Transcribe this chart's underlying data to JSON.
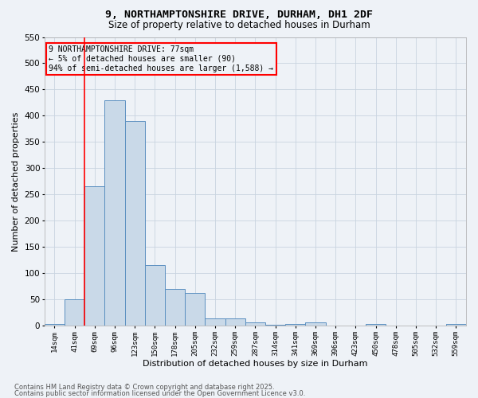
{
  "title_line1": "9, NORTHAMPTONSHIRE DRIVE, DURHAM, DH1 2DF",
  "title_line2": "Size of property relative to detached houses in Durham",
  "xlabel": "Distribution of detached houses by size in Durham",
  "ylabel": "Number of detached properties",
  "categories": [
    "14sqm",
    "41sqm",
    "69sqm",
    "96sqm",
    "123sqm",
    "150sqm",
    "178sqm",
    "205sqm",
    "232sqm",
    "259sqm",
    "287sqm",
    "314sqm",
    "341sqm",
    "369sqm",
    "396sqm",
    "423sqm",
    "450sqm",
    "478sqm",
    "505sqm",
    "532sqm",
    "559sqm"
  ],
  "values": [
    3,
    50,
    265,
    430,
    390,
    115,
    70,
    62,
    14,
    14,
    7,
    1,
    4,
    6,
    0,
    0,
    3,
    0,
    0,
    0,
    3
  ],
  "bar_color": "#c9d9e8",
  "bar_edge_color": "#5a8fc0",
  "grid_color": "#c8d4e0",
  "vline_color": "red",
  "vline_position": 1.5,
  "annotation_title": "9 NORTHAMPTONSHIRE DRIVE: 77sqm",
  "annotation_line1": "← 5% of detached houses are smaller (90)",
  "annotation_line2": "94% of semi-detached houses are larger (1,588) →",
  "annotation_box_color": "red",
  "ylim": [
    0,
    550
  ],
  "yticks": [
    0,
    50,
    100,
    150,
    200,
    250,
    300,
    350,
    400,
    450,
    500,
    550
  ],
  "footnote1": "Contains HM Land Registry data © Crown copyright and database right 2025.",
  "footnote2": "Contains public sector information licensed under the Open Government Licence v3.0.",
  "bg_color": "#eef2f7"
}
